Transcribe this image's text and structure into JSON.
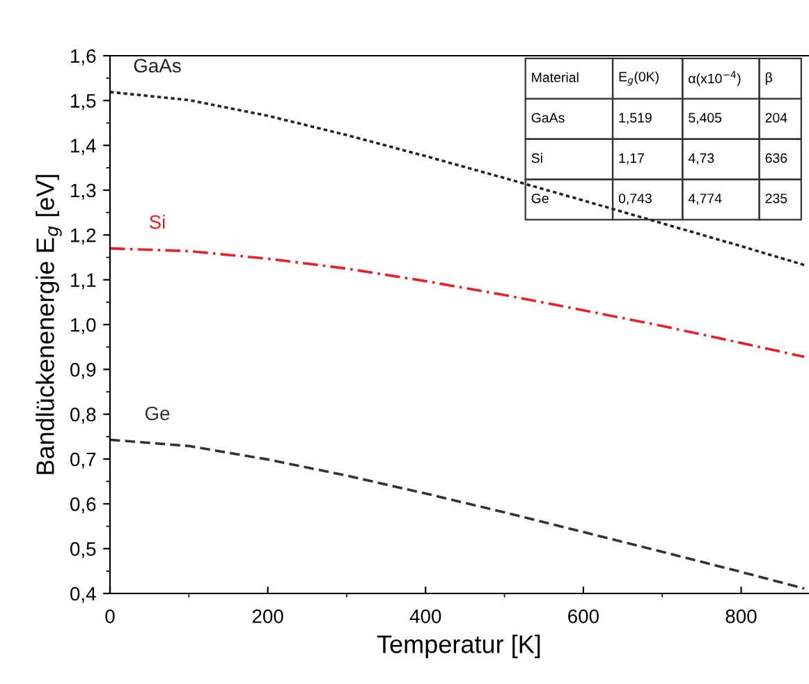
{
  "chart_data": {
    "type": "line",
    "xlabel": "Temperatur [K]",
    "ylabel": "Bandlückenenergie E$_{g}$ [eV]",
    "xlim": [
      0,
      885
    ],
    "ylim": [
      0.4,
      1.6
    ],
    "xticks": [
      0,
      200,
      400,
      600,
      800
    ],
    "yticks": [
      {
        "value": 0.4,
        "label": "0,4"
      },
      {
        "value": 0.5,
        "label": "0,5"
      },
      {
        "value": 0.6,
        "label": "0,6"
      },
      {
        "value": 0.7,
        "label": "0,7"
      },
      {
        "value": 0.8,
        "label": "0,8"
      },
      {
        "value": 0.9,
        "label": "0,9"
      },
      {
        "value": 1.0,
        "label": "1,0"
      },
      {
        "value": 1.1,
        "label": "1,1"
      },
      {
        "value": 1.2,
        "label": "1,2"
      },
      {
        "value": 1.3,
        "label": "1,3"
      },
      {
        "value": 1.4,
        "label": "1,4"
      },
      {
        "value": 1.5,
        "label": "1,5"
      },
      {
        "value": 1.6,
        "label": "1,6"
      }
    ],
    "x": [
      0,
      100,
      200,
      300,
      400,
      500,
      600,
      700,
      800,
      880
    ],
    "grid": false,
    "legend": false,
    "marker": "none",
    "series": [
      {
        "name": "GaAs",
        "color": "#222222",
        "line_style": "dotted",
        "values": [
          1.519,
          1.501,
          1.466,
          1.423,
          1.376,
          1.327,
          1.277,
          1.226,
          1.175,
          1.133
        ]
      },
      {
        "name": "Si",
        "color": "#e8202a",
        "line_style": "dashdot",
        "values": [
          1.17,
          1.164,
          1.147,
          1.125,
          1.097,
          1.066,
          1.032,
          0.997,
          0.959,
          0.928
        ]
      },
      {
        "name": "Ge",
        "color": "#333333",
        "line_style": "dashed",
        "values": [
          0.743,
          0.729,
          0.699,
          0.663,
          0.623,
          0.581,
          0.537,
          0.493,
          0.448,
          0.411
        ]
      }
    ],
    "annotations": [
      "Material",
      "E$_{g}$(0K)",
      "α(x10$^{−4}$)",
      "β",
      "GaAs",
      "1,519",
      "5,405",
      "204",
      "Si",
      "1,17",
      "4,73",
      "636",
      "Ge",
      "0,743",
      "4,774",
      "235"
    ]
  }
}
